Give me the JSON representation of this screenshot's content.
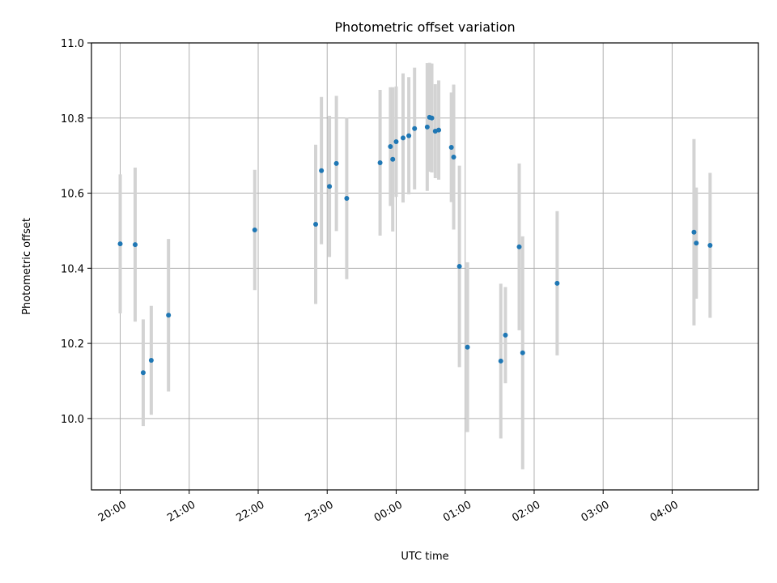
{
  "chart_data": {
    "type": "scatter",
    "title": "Photometric offset variation",
    "xlabel": "UTC time",
    "ylabel": "Photometric offset",
    "x_unit": "UTC time (HH:MM)",
    "xlim": [
      "19:35",
      "05:15"
    ],
    "ylim": [
      9.81,
      11.0
    ],
    "x_ticks": [
      "20:00",
      "21:00",
      "22:00",
      "23:00",
      "00:00",
      "01:00",
      "02:00",
      "03:00",
      "04:00"
    ],
    "y_ticks": [
      "10.0",
      "10.2",
      "10.4",
      "10.6",
      "10.8",
      "11.0"
    ],
    "grid": true,
    "error_bars": true,
    "colors": {
      "points": "#1f77b4",
      "errorbars": "#d3d3d3",
      "grid": "#b0b0b0"
    },
    "points": [
      {
        "t": "20:00",
        "y": 10.465,
        "err": 0.185
      },
      {
        "t": "20:13",
        "y": 10.463,
        "err": 0.205
      },
      {
        "t": "20:20",
        "y": 10.122,
        "err": 0.142
      },
      {
        "t": "20:27",
        "y": 10.155,
        "err": 0.145
      },
      {
        "t": "20:42",
        "y": 10.275,
        "err": 0.203
      },
      {
        "t": "21:57",
        "y": 10.502,
        "err": 0.16
      },
      {
        "t": "22:50",
        "y": 10.517,
        "err": 0.212
      },
      {
        "t": "22:55",
        "y": 10.66,
        "err": 0.196
      },
      {
        "t": "23:02",
        "y": 10.618,
        "err": 0.188
      },
      {
        "t": "23:08",
        "y": 10.679,
        "err": 0.18
      },
      {
        "t": "23:17",
        "y": 10.586,
        "err": 0.215
      },
      {
        "t": "23:46",
        "y": 10.681,
        "err": 0.194
      },
      {
        "t": "23:55",
        "y": 10.724,
        "err": 0.158
      },
      {
        "t": "23:57",
        "y": 10.69,
        "err": 0.192
      },
      {
        "t": "00:00",
        "y": 10.737,
        "err": 0.147
      },
      {
        "t": "00:06",
        "y": 10.747,
        "err": 0.172
      },
      {
        "t": "00:11",
        "y": 10.753,
        "err": 0.156
      },
      {
        "t": "00:16",
        "y": 10.772,
        "err": 0.162
      },
      {
        "t": "00:27",
        "y": 10.776,
        "err": 0.17
      },
      {
        "t": "00:29",
        "y": 10.802,
        "err": 0.145
      },
      {
        "t": "00:31",
        "y": 10.8,
        "err": 0.145
      },
      {
        "t": "00:34",
        "y": 10.765,
        "err": 0.125
      },
      {
        "t": "00:37",
        "y": 10.768,
        "err": 0.132
      },
      {
        "t": "00:48",
        "y": 10.722,
        "err": 0.146
      },
      {
        "t": "00:50",
        "y": 10.696,
        "err": 0.193
      },
      {
        "t": "00:55",
        "y": 10.405,
        "err": 0.268
      },
      {
        "t": "01:02",
        "y": 10.19,
        "err": 0.226
      },
      {
        "t": "01:31",
        "y": 10.153,
        "err": 0.206
      },
      {
        "t": "01:35",
        "y": 10.222,
        "err": 0.128
      },
      {
        "t": "01:47",
        "y": 10.457,
        "err": 0.222
      },
      {
        "t": "01:50",
        "y": 10.175,
        "err": 0.31
      },
      {
        "t": "02:20",
        "y": 10.36,
        "err": 0.192
      },
      {
        "t": "04:19",
        "y": 10.496,
        "err": 0.248
      },
      {
        "t": "04:21",
        "y": 10.467,
        "err": 0.148
      },
      {
        "t": "04:33",
        "y": 10.461,
        "err": 0.193
      }
    ]
  }
}
